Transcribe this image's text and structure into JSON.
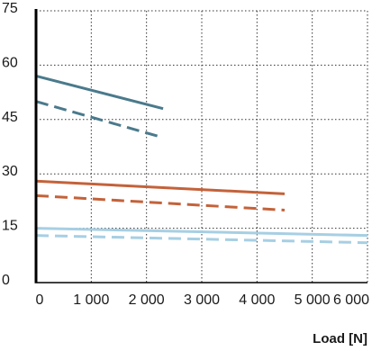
{
  "chart_data": {
    "type": "line",
    "title": "",
    "xlabel": "Load [N]",
    "ylabel": "",
    "xlim": [
      0,
      6000
    ],
    "ylim": [
      0,
      75
    ],
    "grid": true,
    "grid_style": "dotted",
    "x_ticks": [
      0,
      1000,
      2000,
      3000,
      4000,
      5000,
      6000
    ],
    "x_tick_labels": [
      "0",
      "1 000",
      "2 000",
      "3 000",
      "4 000",
      "5 000",
      "6 000"
    ],
    "y_ticks": [
      0,
      15,
      30,
      45,
      60,
      75
    ],
    "y_tick_labels": [
      "0",
      "15",
      "30",
      "45",
      "60",
      "75"
    ],
    "series": [
      {
        "color": "#4a7a8c",
        "style": "solid",
        "x": [
          0,
          2300
        ],
        "y": [
          57,
          48
        ]
      },
      {
        "color": "#4a7a8c",
        "style": "dashed",
        "x": [
          0,
          2300
        ],
        "y": [
          50,
          40
        ]
      },
      {
        "color": "#c4623a",
        "style": "solid",
        "x": [
          0,
          4500
        ],
        "y": [
          28,
          24.5
        ]
      },
      {
        "color": "#c4623a",
        "style": "dashed",
        "x": [
          0,
          4500
        ],
        "y": [
          24,
          20
        ]
      },
      {
        "color": "#a7cfe3",
        "style": "solid",
        "x": [
          0,
          6000
        ],
        "y": [
          15,
          13
        ]
      },
      {
        "color": "#a7cfe3",
        "style": "dashed",
        "x": [
          0,
          6000
        ],
        "y": [
          13,
          11
        ]
      }
    ]
  }
}
